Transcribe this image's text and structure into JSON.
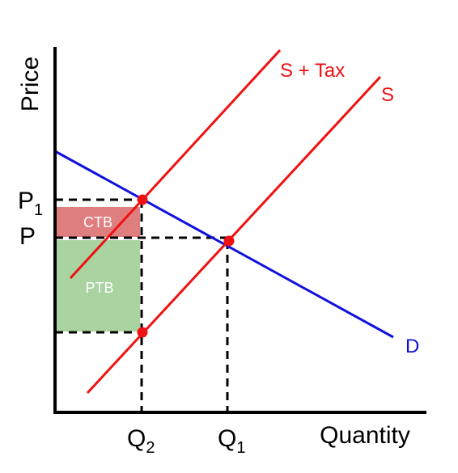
{
  "axes": {
    "y_label": "Price",
    "x_label": "Quantity"
  },
  "price_labels": [
    {
      "main": "P",
      "sub": "1"
    },
    {
      "main": "P"
    }
  ],
  "quantity_labels": [
    {
      "main": "Q",
      "sub": "2"
    },
    {
      "main": "Q",
      "sub": "1"
    }
  ],
  "curves": {
    "supply_tax": "S + Tax",
    "supply": "S",
    "demand": "D"
  },
  "areas": {
    "consumer_burden": "CTB",
    "producer_burden": "PTB"
  }
}
